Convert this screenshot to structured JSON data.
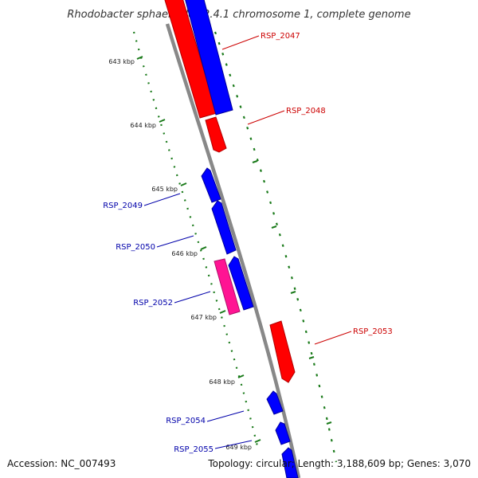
{
  "title": "Rhodobacter sphaeroides 2.4.1 chromosome 1, complete genome",
  "footer": {
    "accession": "Accession: NC_007493",
    "summary": "Topology: circular; Length: 3,188,609 bp; Genes: 3,070"
  },
  "colors": {
    "backbone": "#888888",
    "forward_gene": "#ff0000",
    "reverse_gene": "#0000ff",
    "highlight_gene": "#ff1493",
    "ticks": "#1a7a1a",
    "label_red": "#cc0000",
    "label_blue": "#0000aa"
  },
  "scale_ticks": [
    "643 kbp",
    "644 kbp",
    "645 kbp",
    "646 kbp",
    "647 kbp",
    "648 kbp",
    "649 kbp"
  ],
  "gene_labels": [
    {
      "name": "RSP_2047",
      "side": "right",
      "color": "red"
    },
    {
      "name": "RSP_2048",
      "side": "right",
      "color": "red"
    },
    {
      "name": "RSP_2049",
      "side": "left",
      "color": "blue"
    },
    {
      "name": "RSP_2050",
      "side": "left",
      "color": "blue"
    },
    {
      "name": "RSP_2052",
      "side": "left",
      "color": "blue"
    },
    {
      "name": "RSP_2053",
      "side": "right",
      "color": "red"
    },
    {
      "name": "RSP_2054",
      "side": "left",
      "color": "blue"
    },
    {
      "name": "RSP_2055",
      "side": "left",
      "color": "blue"
    }
  ]
}
